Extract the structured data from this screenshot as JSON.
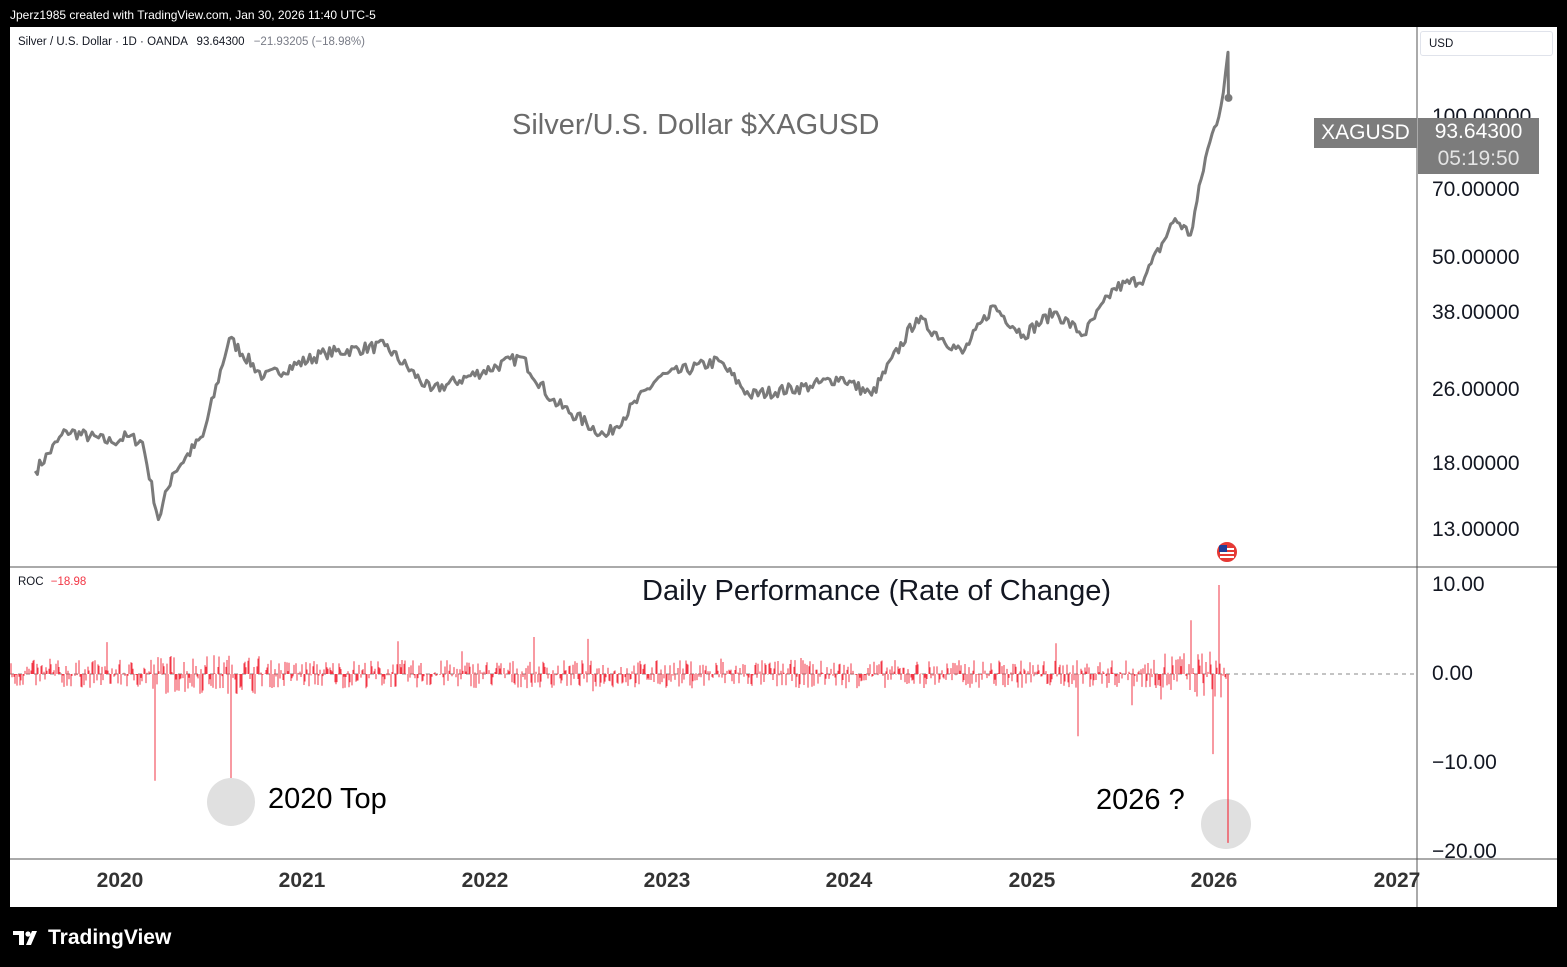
{
  "header": {
    "credit": "Jperz1985 created with TradingView.com, Jan 30, 2026 11:40 UTC-5"
  },
  "symbol": {
    "name": "Silver / U.S. Dollar · 1D · OANDA",
    "price": "93.64300",
    "change": "−21.93205 (−18.98%)"
  },
  "currency": "USD",
  "roc_indicator": {
    "label": "ROC",
    "value": "−18.98"
  },
  "price_tag": {
    "symbol": "XAGUSD",
    "price": "93.64300",
    "countdown": "05:19:50"
  },
  "annotations": {
    "left": "2020 Top",
    "right": "2026 ?"
  },
  "footer": {
    "brand": "TradingView"
  },
  "colors": {
    "price_line": "#7a7a7a",
    "roc_bars": "#f23645",
    "tag_bg": "#7c7c7c",
    "circle": "#e0e0e0"
  },
  "chart_data": [
    {
      "type": "line",
      "title": "Silver/U.S. Dollar $XAGUSD",
      "series": [
        {
          "x": [
            "2019-07",
            "2019-09",
            "2019-12",
            "2020-01",
            "2020-02",
            "2020-03-18",
            "2020-04",
            "2020-06",
            "2020-08-07",
            "2020-10",
            "2021-02",
            "2021-06",
            "2021-09",
            "2022-03",
            "2022-05",
            "2022-09-01",
            "2022-12",
            "2023-04",
            "2023-06",
            "2023-10",
            "2023-12",
            "2024-02",
            "2024-05",
            "2024-08",
            "2024-10",
            "2024-12",
            "2025-02",
            "2025-04",
            "2025-06",
            "2025-08",
            "2025-10",
            "2025-11",
            "2025-12",
            "2026-01-15",
            "2026-01-29",
            "2026-01-30"
          ],
          "values": [
            15.2,
            18.5,
            17.5,
            18.0,
            17.5,
            12.0,
            15.0,
            18.0,
            29.0,
            24.0,
            27.0,
            28.0,
            22.5,
            26.5,
            21.5,
            18.0,
            24.0,
            26.0,
            22.0,
            23.0,
            24.0,
            22.0,
            32.0,
            27.0,
            34.0,
            29.5,
            33.0,
            29.5,
            37.0,
            39.0,
            52.0,
            48.0,
            70.0,
            90.0,
            117.0,
            93.643
          ]
        }
      ],
      "x_ticks": [
        "2020",
        "2021",
        "2022",
        "2023",
        "2024",
        "2025",
        "2026",
        "2027"
      ],
      "y_ticks": [
        "100.00000",
        "70.00000",
        "50.00000",
        "38.00000",
        "26.00000",
        "18.00000",
        "13.00000"
      ],
      "y_scale": "log",
      "ylim": [
        10.5,
        120
      ],
      "grid": false
    },
    {
      "type": "bar",
      "title": "Daily Performance (Rate of Change)",
      "series": [
        {
          "name": "ROC",
          "last_value": -18.98
        }
      ],
      "notable_bars": [
        {
          "date": "2020-03-12",
          "value": -12.0
        },
        {
          "date": "2020-08-11",
          "value": -14.8
        },
        {
          "date": "2020-07-21",
          "value": 8.0
        },
        {
          "date": "2025-04-04",
          "value": -7.0
        },
        {
          "date": "2025-12-29",
          "value": -9.0
        },
        {
          "date": "2026-01-12",
          "value": 10.0
        },
        {
          "date": "2026-01-30",
          "value": -18.98
        }
      ],
      "y_ticks": [
        "10.00",
        "0.00",
        "−10.00",
        "−20.00"
      ],
      "ylim": [
        -20,
        10
      ],
      "zero_line": "dashed"
    }
  ]
}
